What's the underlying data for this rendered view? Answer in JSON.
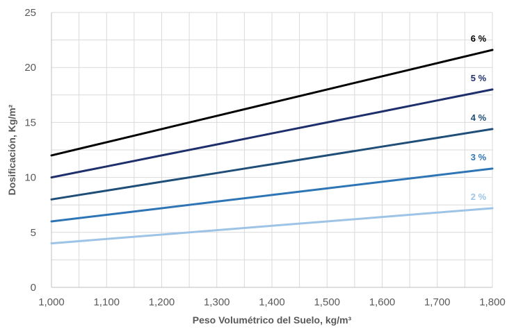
{
  "chart_data": {
    "type": "line",
    "title": "",
    "xlabel": "Peso Volumétrico del Suelo, kg/m³",
    "ylabel": "Dosificación, Kg/m²",
    "x_ticks": [
      "1,000",
      "1,100",
      "1,200",
      "1,300",
      "1,400",
      "1,500",
      "1,600",
      "1,700",
      "1,800"
    ],
    "y_ticks": [
      "0",
      "5",
      "10",
      "15",
      "20",
      "25"
    ],
    "xlim": [
      1000,
      1800
    ],
    "ylim": [
      0,
      25
    ],
    "grid": true,
    "legend": "none",
    "x": [
      1000,
      1100,
      1200,
      1300,
      1400,
      1500,
      1600,
      1700,
      1800
    ],
    "series": [
      {
        "name": "2 %",
        "color": "#9dc3e6",
        "values": [
          4.0,
          4.4,
          4.8,
          5.2,
          5.6,
          6.0,
          6.4,
          6.8,
          7.2
        ]
      },
      {
        "name": "3 %",
        "color": "#2e75b6",
        "values": [
          6.0,
          6.6,
          7.2,
          7.8,
          8.4,
          9.0,
          9.6,
          10.2,
          10.8
        ]
      },
      {
        "name": "4 %",
        "color": "#1f4e79",
        "values": [
          8.0,
          8.8,
          9.6,
          10.4,
          11.2,
          12.0,
          12.8,
          13.6,
          14.4
        ]
      },
      {
        "name": "5 %",
        "color": "#1f2f6b",
        "values": [
          10.0,
          11.0,
          12.0,
          13.0,
          14.0,
          15.0,
          16.0,
          17.0,
          18.0
        ]
      },
      {
        "name": "6 %",
        "color": "#000000",
        "values": [
          12.0,
          13.2,
          14.4,
          15.6,
          16.8,
          18.0,
          19.2,
          20.4,
          21.6
        ]
      }
    ]
  }
}
